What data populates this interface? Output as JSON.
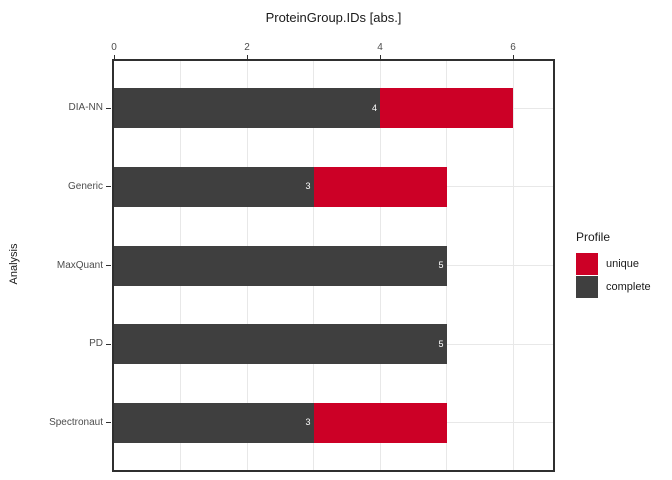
{
  "chart_data": {
    "type": "bar",
    "orientation": "horizontal",
    "stacked": true,
    "title": "ProteinGroup.IDs [abs.]",
    "xlabel": "ProteinGroup.IDs [abs.]",
    "ylabel": "Analysis",
    "categories": [
      "DIA-NN",
      "Generic",
      "MaxQuant",
      "PD",
      "Spectronaut"
    ],
    "series": [
      {
        "name": "complete",
        "color": "#3f3f3f",
        "values": [
          4,
          3,
          5,
          5,
          3
        ]
      },
      {
        "name": "unique",
        "color": "#cc0026",
        "values": [
          2,
          2,
          0,
          0,
          2
        ]
      }
    ],
    "bar_labels": [
      "4",
      "3",
      "5",
      "5",
      "3"
    ],
    "x_ticks": [
      0,
      2,
      4,
      6
    ],
    "xlim": [
      0,
      6.6
    ],
    "grid": true,
    "axis_position": "top",
    "legend": {
      "title": "Profile",
      "position": "right",
      "entries": [
        {
          "label": "unique",
          "color": "#cc0026"
        },
        {
          "label": "complete",
          "color": "#3f3f3f"
        }
      ]
    }
  }
}
